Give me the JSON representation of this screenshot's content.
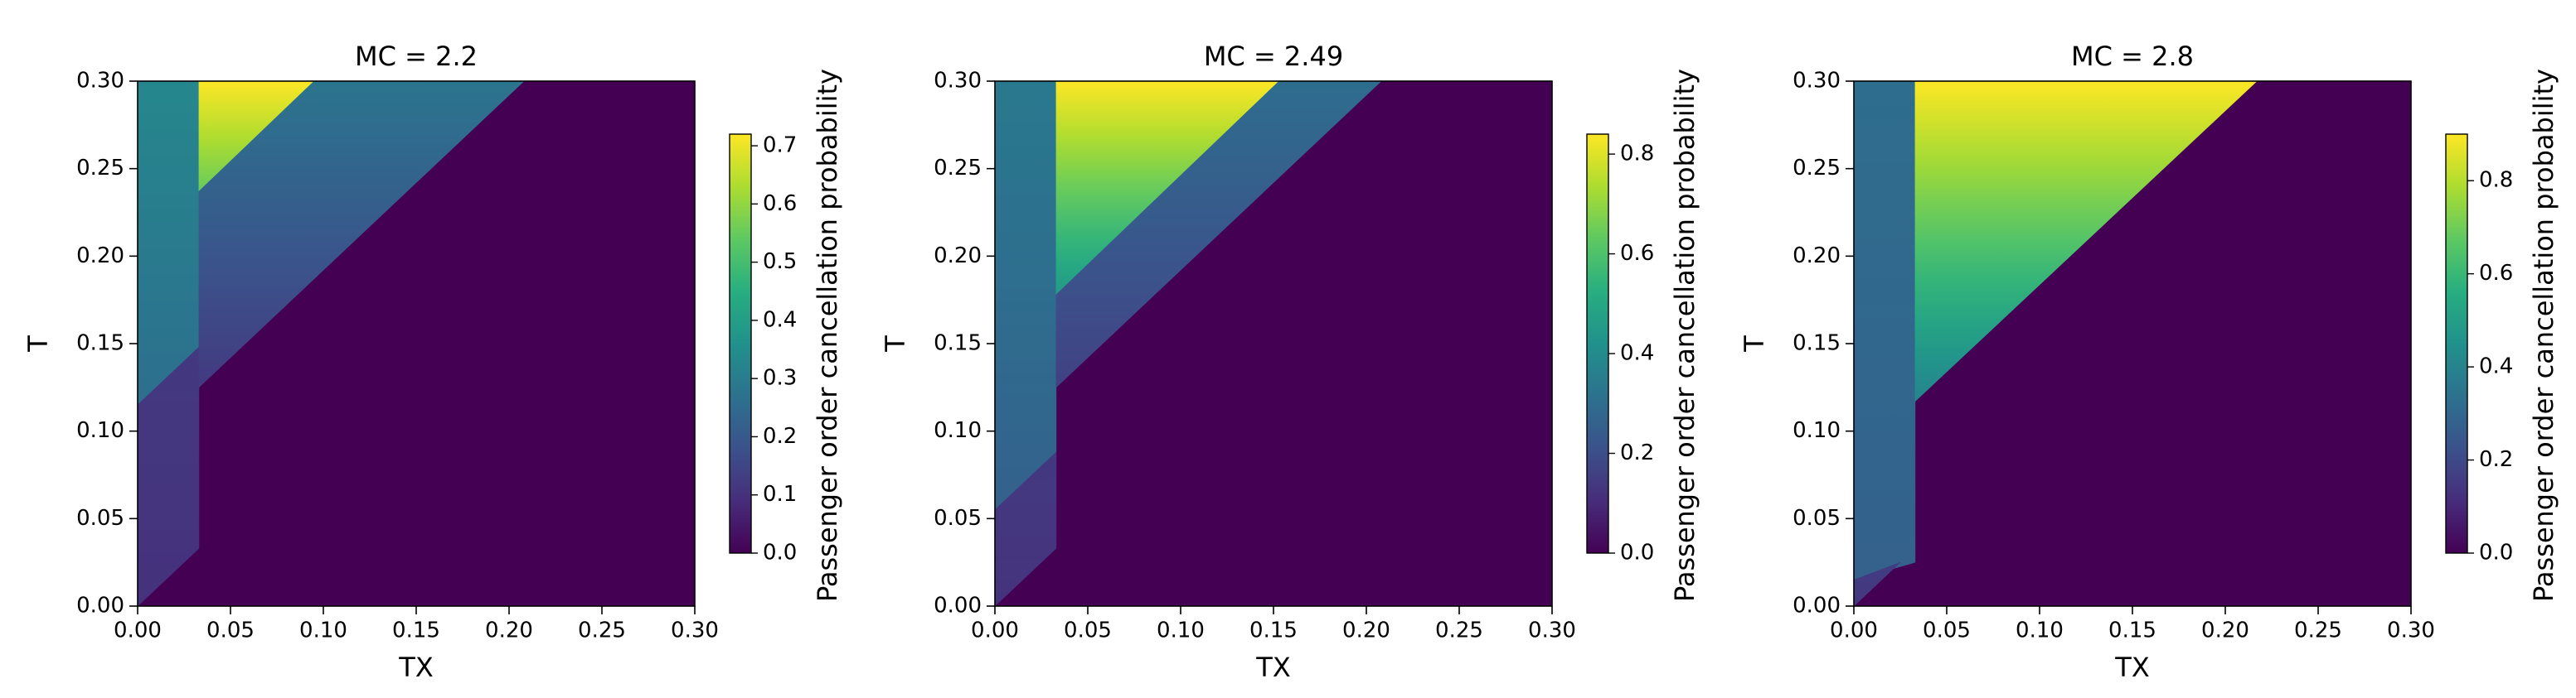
{
  "chart_data": [
    {
      "type": "heatmap",
      "title": "MC = 2.2",
      "x_label": "TX",
      "y_label": "T",
      "colorbar_label": "Passenger order cancellation probability",
      "colormap": "viridis",
      "xlim": [
        0,
        0.3
      ],
      "ylim": [
        0,
        0.3
      ],
      "zlim": [
        0,
        0.72
      ],
      "xticks": [
        {
          "value": 0,
          "label": "0.00"
        },
        {
          "value": 0.05,
          "label": "0.05"
        },
        {
          "value": 0.1,
          "label": "0.10"
        },
        {
          "value": 0.15,
          "label": "0.15"
        },
        {
          "value": 0.2,
          "label": "0.20"
        },
        {
          "value": 0.25,
          "label": "0.25"
        },
        {
          "value": 0.3,
          "label": "0.30"
        }
      ],
      "yticks": [
        {
          "value": 0,
          "label": "0.00"
        },
        {
          "value": 0.05,
          "label": "0.05"
        },
        {
          "value": 0.1,
          "label": "0.10"
        },
        {
          "value": 0.15,
          "label": "0.15"
        },
        {
          "value": 0.2,
          "label": "0.20"
        },
        {
          "value": 0.25,
          "label": "0.25"
        },
        {
          "value": 0.3,
          "label": "0.30"
        }
      ],
      "zticks": [
        {
          "value": 0,
          "label": "0.0"
        },
        0.1,
        0.2,
        0.3,
        0.4,
        0.5,
        0.6,
        0.7
      ],
      "regions": [
        {
          "polygon": [
            [
              0,
              0
            ],
            [
              0.3,
              0
            ],
            [
              0.3,
              0.3
            ],
            [
              0,
              0.3
            ]
          ],
          "values": [
            0,
            0
          ]
        },
        {
          "polygon": [
            [
              0,
              0.115
            ],
            [
              0.033,
              0.148
            ],
            [
              0.033,
              0.3
            ],
            [
              0,
              0.3
            ]
          ],
          "values": [
            0.26,
            0.33
          ]
        },
        {
          "polygon": [
            [
              0,
              0
            ],
            [
              0.033,
              0.033
            ],
            [
              0.033,
              0.148
            ],
            [
              0,
              0.115
            ]
          ],
          "values": [
            0.1,
            0.12
          ]
        },
        {
          "polygon": [
            [
              0.033,
              0.237
            ],
            [
              0.033,
              0.3
            ],
            [
              0.095,
              0.3
            ]
          ],
          "values": [
            0.55,
            0.72
          ]
        },
        {
          "polygon": [
            [
              0.033,
              0.125
            ],
            [
              0.208,
              0.3
            ],
            [
              0.095,
              0.3
            ],
            [
              0.033,
              0.237
            ]
          ],
          "values": [
            0.12,
            0.28
          ]
        }
      ]
    },
    {
      "type": "heatmap",
      "title": "MC = 2.49",
      "x_label": "TX",
      "y_label": "T",
      "colorbar_label": "Passenger order cancellation probability",
      "colormap": "viridis",
      "xlim": [
        0,
        0.3
      ],
      "ylim": [
        0,
        0.3
      ],
      "zlim": [
        0,
        0.84
      ],
      "xticks": [
        {
          "value": 0,
          "label": "0.00"
        },
        {
          "value": 0.05,
          "label": "0.05"
        },
        {
          "value": 0.1,
          "label": "0.10"
        },
        {
          "value": 0.15,
          "label": "0.15"
        },
        {
          "value": 0.2,
          "label": "0.20"
        },
        {
          "value": 0.25,
          "label": "0.25"
        },
        {
          "value": 0.3,
          "label": "0.30"
        }
      ],
      "yticks": [
        {
          "value": 0,
          "label": "0.00"
        },
        {
          "value": 0.05,
          "label": "0.05"
        },
        {
          "value": 0.1,
          "label": "0.10"
        },
        {
          "value": 0.15,
          "label": "0.15"
        },
        {
          "value": 0.2,
          "label": "0.20"
        },
        {
          "value": 0.25,
          "label": "0.25"
        },
        {
          "value": 0.3,
          "label": "0.30"
        }
      ],
      "zticks": [
        {
          "value": 0,
          "label": "0.0"
        },
        0.2,
        0.4,
        0.6,
        0.8
      ],
      "regions": [
        {
          "polygon": [
            [
              0,
              0
            ],
            [
              0.3,
              0
            ],
            [
              0.3,
              0.3
            ],
            [
              0,
              0.3
            ]
          ],
          "values": [
            0,
            0
          ]
        },
        {
          "polygon": [
            [
              0,
              0.055
            ],
            [
              0.033,
              0.088
            ],
            [
              0.033,
              0.3
            ],
            [
              0,
              0.3
            ]
          ],
          "values": [
            0.26,
            0.34
          ]
        },
        {
          "polygon": [
            [
              0,
              0
            ],
            [
              0.033,
              0.033
            ],
            [
              0.033,
              0.088
            ],
            [
              0,
              0.055
            ]
          ],
          "values": [
            0.12,
            0.14
          ]
        },
        {
          "polygon": [
            [
              0.033,
              0.178
            ],
            [
              0.033,
              0.3
            ],
            [
              0.153,
              0.3
            ]
          ],
          "values": [
            0.45,
            0.84
          ]
        },
        {
          "polygon": [
            [
              0.033,
              0.125
            ],
            [
              0.208,
              0.3
            ],
            [
              0.153,
              0.3
            ],
            [
              0.033,
              0.178
            ]
          ],
          "values": [
            0.16,
            0.3
          ]
        }
      ]
    },
    {
      "type": "heatmap",
      "title": "MC = 2.8",
      "x_label": "TX",
      "y_label": "T",
      "colorbar_label": "Passenger order cancellation probability",
      "colormap": "viridis",
      "xlim": [
        0,
        0.3
      ],
      "ylim": [
        0,
        0.3
      ],
      "zlim": [
        0,
        0.9
      ],
      "xticks": [
        {
          "value": 0,
          "label": "0.00"
        },
        {
          "value": 0.05,
          "label": "0.05"
        },
        {
          "value": 0.1,
          "label": "0.10"
        },
        {
          "value": 0.15,
          "label": "0.15"
        },
        {
          "value": 0.2,
          "label": "0.20"
        },
        {
          "value": 0.25,
          "label": "0.25"
        },
        {
          "value": 0.3,
          "label": "0.30"
        }
      ],
      "yticks": [
        {
          "value": 0,
          "label": "0.00"
        },
        {
          "value": 0.05,
          "label": "0.05"
        },
        {
          "value": 0.1,
          "label": "0.10"
        },
        {
          "value": 0.15,
          "label": "0.15"
        },
        {
          "value": 0.2,
          "label": "0.20"
        },
        {
          "value": 0.25,
          "label": "0.25"
        },
        {
          "value": 0.3,
          "label": "0.30"
        }
      ],
      "zticks": [
        {
          "value": 0,
          "label": "0.0"
        },
        0.2,
        0.4,
        0.6,
        0.8
      ],
      "regions": [
        {
          "polygon": [
            [
              0,
              0
            ],
            [
              0.3,
              0
            ],
            [
              0.3,
              0.3
            ],
            [
              0,
              0.3
            ]
          ],
          "values": [
            0,
            0
          ]
        },
        {
          "polygon": [
            [
              0,
              0.015
            ],
            [
              0.033,
              0.025
            ],
            [
              0.033,
              0.3
            ],
            [
              0,
              0.3
            ]
          ],
          "values": [
            0.28,
            0.32
          ]
        },
        {
          "polygon": [
            [
              0,
              0
            ],
            [
              0.025,
              0.025
            ],
            [
              0,
              0.015
            ]
          ],
          "values": [
            0.14,
            0.16
          ]
        },
        {
          "polygon": [
            [
              0.033,
              0.117
            ],
            [
              0.033,
              0.3
            ],
            [
              0.217,
              0.3
            ]
          ],
          "values": [
            0.4,
            0.9
          ]
        }
      ]
    }
  ]
}
